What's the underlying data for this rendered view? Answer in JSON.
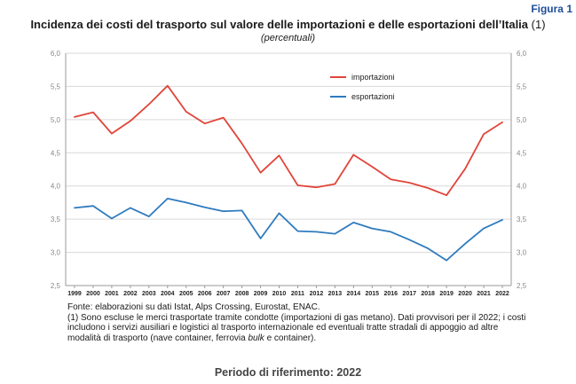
{
  "figure_label": "Figura 1",
  "title_main": "Incidenza dei costi del trasporto sul valore delle importazioni e delle esportazioni dell’Italia",
  "title_suffix": "(1)",
  "subtitle": "(percentuali)",
  "chart_data": {
    "type": "line",
    "x": [
      "1999",
      "2000",
      "2001",
      "2002",
      "2003",
      "2004",
      "2005",
      "2006",
      "2007",
      "2008",
      "2009",
      "2010",
      "2011",
      "2012",
      "2013",
      "2014",
      "2015",
      "2016",
      "2017",
      "2018",
      "2019",
      "2020",
      "2021",
      "2022"
    ],
    "series": [
      {
        "name": "importazioni",
        "color": "#e0453a",
        "values": [
          5.04,
          5.11,
          4.79,
          4.98,
          5.23,
          5.51,
          5.12,
          4.94,
          5.03,
          4.64,
          4.2,
          4.46,
          4.01,
          3.98,
          4.03,
          4.47,
          4.29,
          4.1,
          4.05,
          3.97,
          3.86,
          4.26,
          4.78,
          4.96
        ]
      },
      {
        "name": "esportazioni",
        "color": "#2e7bbf",
        "values": [
          3.67,
          3.7,
          3.51,
          3.67,
          3.54,
          3.81,
          3.75,
          3.68,
          3.62,
          3.63,
          3.21,
          3.59,
          3.32,
          3.31,
          3.28,
          3.45,
          3.36,
          3.31,
          3.19,
          3.06,
          2.88,
          3.13,
          3.36,
          3.49
        ]
      }
    ],
    "ylim": [
      2.5,
      6.0
    ],
    "yticks": [
      "2,5",
      "3,0",
      "3,5",
      "4,0",
      "4,5",
      "5,0",
      "5,5",
      "6,0"
    ],
    "ytick_values": [
      2.5,
      3.0,
      3.5,
      4.0,
      4.5,
      5.0,
      5.5,
      6.0
    ],
    "grid": true,
    "legend_position": "top-right",
    "axis_color": "#999999",
    "grid_color": "#d9d9d9"
  },
  "notes": {
    "source": "Fonte: elaborazioni su dati Istat, Alps Crossing, Eurostat, ENAC.",
    "note_before_italic": "(1) Sono escluse le merci trasportate tramite condotte (importazioni di gas metano). Dati provvisori per il 2022; i costi includono i servizi ausiliari e logistici al trasporto internazionale ed eventuali tratte stradali di appoggio ad altre modalità di trasporto (nave container, ferrovia ",
    "note_italic": "bulk",
    "note_after_italic": " e container)."
  },
  "period": "Periodo di riferimento: 2022"
}
